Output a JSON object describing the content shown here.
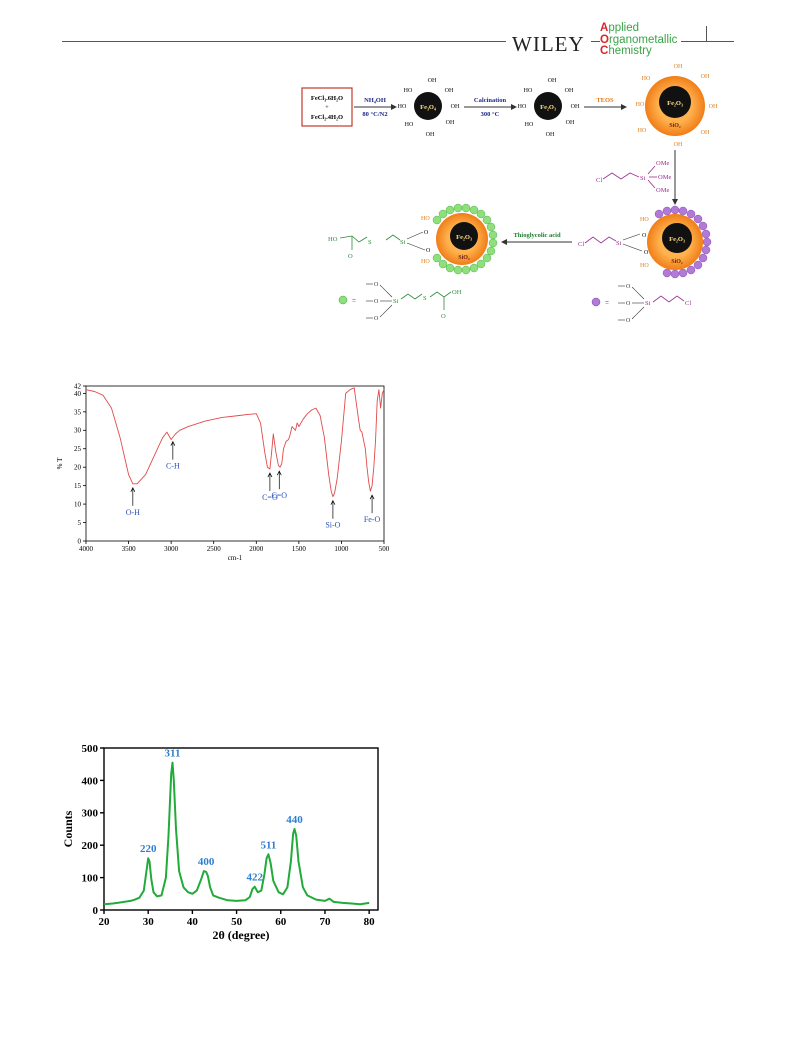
{
  "header": {
    "publisher": "WILEY",
    "journal_lines": [
      {
        "cap": "A",
        "rest": "pplied"
      },
      {
        "cap": "O",
        "rest": "rganometallic"
      },
      {
        "cap": "C",
        "rest": "hemistry"
      }
    ]
  },
  "scheme": {
    "reagent_line1": "FeCl₃.6H₂O",
    "reagent_plus": "+",
    "reagent_line2": "FeCl₂.4H₂O",
    "step1_top": "NH₄OH",
    "step1_bottom": "80 °C/N2",
    "step2_top": "Calcination",
    "step2_bottom": "300 °C",
    "step3_top": "TEOS",
    "step4_label": "Thioglycolic acid",
    "core1": "Fe₃O₄",
    "core2": "Fe₂O₃",
    "shell": "SiO₂",
    "oh": "OH",
    "ho": "HO",
    "si": "Si",
    "ome": "OMe",
    "cl": "Cl",
    "o": "O",
    "s": "S",
    "ho_acid": "HO",
    "equals": "="
  },
  "chart_data": [
    {
      "type": "line",
      "xlabel": "cm-1",
      "ylabel": "% T",
      "xlim": [
        4000,
        500
      ],
      "ylim": [
        0,
        42
      ],
      "x_ticks": [
        4000,
        3500,
        3000,
        2500,
        2000,
        1500,
        1000,
        500
      ],
      "y_ticks": [
        0,
        5,
        10,
        15,
        20,
        25,
        30,
        35,
        40,
        42
      ],
      "series": [
        {
          "color": "#e24a4a",
          "x": [
            4000,
            3900,
            3800,
            3700,
            3600,
            3500,
            3450,
            3400,
            3300,
            3200,
            3100,
            3050,
            3000,
            2950,
            2900,
            2800,
            2600,
            2400,
            2200,
            2100,
            2000,
            1950,
            1900,
            1870,
            1840,
            1820,
            1800,
            1770,
            1740,
            1720,
            1700,
            1680,
            1650,
            1620,
            1600,
            1580,
            1560,
            1540,
            1520,
            1500,
            1450,
            1400,
            1350,
            1300,
            1250,
            1200,
            1150,
            1120,
            1100,
            1080,
            1050,
            1000,
            950,
            900,
            850,
            800,
            780,
            760,
            720,
            700,
            680,
            660,
            640,
            620,
            600,
            580,
            560,
            540,
            520,
            500
          ],
          "values": [
            41,
            40.5,
            39.5,
            36,
            28,
            18,
            15.5,
            15.5,
            18,
            23,
            28,
            29.5,
            27.5,
            29,
            30,
            31,
            32.5,
            33.5,
            34,
            34.3,
            34.5,
            32,
            24,
            20,
            19.5,
            24,
            29,
            24,
            20.5,
            20,
            21,
            25,
            27,
            27.5,
            29,
            31,
            30.5,
            30,
            32,
            31,
            33,
            34.5,
            35.5,
            36,
            34,
            28,
            18,
            13.5,
            12,
            13,
            17,
            27,
            40,
            41,
            41.5,
            33,
            30,
            29.5,
            25,
            20,
            16,
            13.5,
            15,
            20,
            27,
            38,
            41,
            36,
            40,
            41
          ]
        }
      ],
      "annotations": [
        {
          "label": "O-H",
          "x": 3450,
          "y": 15.5
        },
        {
          "label": "C-H",
          "x": 2980,
          "y": 28
        },
        {
          "label": "C=O",
          "x": 1840,
          "y": 19.5
        },
        {
          "label": "C=O",
          "x": 1730,
          "y": 20
        },
        {
          "label": "Si-O",
          "x": 1100,
          "y": 12
        },
        {
          "label": "Fe-O",
          "x": 640,
          "y": 13.5
        }
      ]
    },
    {
      "type": "line",
      "xlabel": "2θ (degree)",
      "ylabel": "Counts",
      "xlim": [
        20,
        82
      ],
      "ylim": [
        0,
        500
      ],
      "x_ticks": [
        20,
        30,
        40,
        50,
        60,
        70,
        80
      ],
      "y_ticks": [
        0,
        100,
        200,
        300,
        400,
        500
      ],
      "series": [
        {
          "color": "#22aa3a",
          "x": [
            20,
            22,
            24,
            26,
            27,
            28,
            29,
            29.5,
            30,
            30.3,
            30.7,
            31.2,
            32,
            33,
            34,
            34.6,
            35.2,
            35.5,
            35.8,
            36.3,
            37,
            38,
            39,
            40,
            41,
            42,
            42.6,
            43.1,
            43.5,
            44,
            44.7,
            46,
            48,
            50,
            52,
            53,
            53.6,
            54.1,
            54.8,
            55.6,
            56.3,
            56.8,
            57.2,
            57.7,
            58.3,
            59.5,
            60.5,
            61.5,
            62.3,
            62.8,
            63.1,
            63.5,
            64,
            65,
            66,
            68,
            70,
            71,
            72,
            74,
            76,
            78,
            80
          ],
          "values": [
            18,
            20,
            24,
            28,
            32,
            38,
            60,
            110,
            160,
            150,
            95,
            55,
            42,
            45,
            100,
            230,
            420,
            455,
            400,
            250,
            120,
            70,
            55,
            50,
            60,
            95,
            120,
            118,
            105,
            70,
            45,
            38,
            30,
            28,
            30,
            40,
            65,
            72,
            55,
            60,
            110,
            160,
            172,
            145,
            90,
            55,
            48,
            70,
            150,
            235,
            250,
            230,
            150,
            70,
            45,
            32,
            28,
            35,
            25,
            22,
            20,
            18,
            22
          ]
        }
      ],
      "annotations": [
        {
          "label": "220",
          "x": 30,
          "y": 160
        },
        {
          "label": "311",
          "x": 35.5,
          "y": 455
        },
        {
          "label": "400",
          "x": 43.1,
          "y": 120
        },
        {
          "label": "422",
          "x": 54.1,
          "y": 72
        },
        {
          "label": "511",
          "x": 57.2,
          "y": 172
        },
        {
          "label": "440",
          "x": 63.1,
          "y": 250
        }
      ]
    }
  ]
}
